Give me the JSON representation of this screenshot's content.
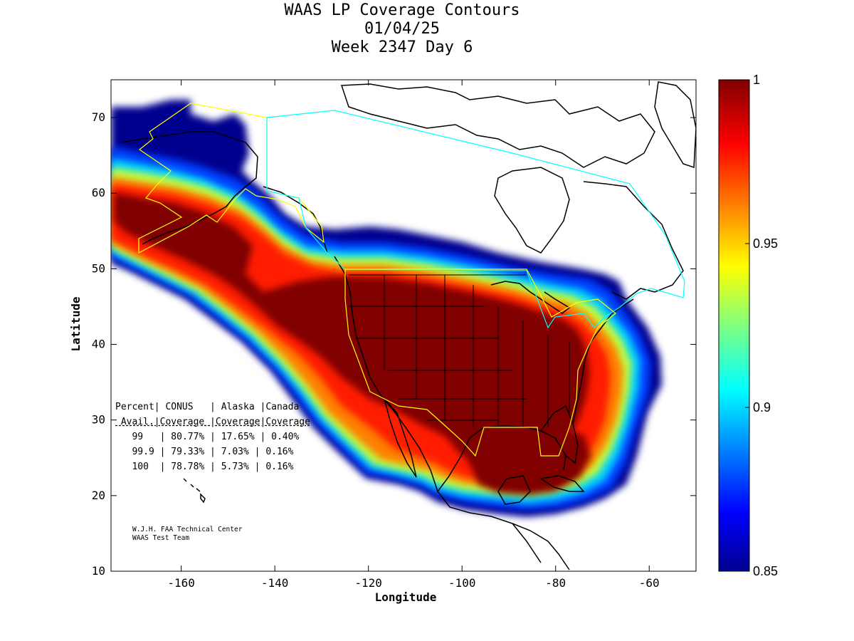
{
  "title": {
    "line1": "WAAS LP Coverage Contours",
    "line2": "01/04/25",
    "line3": "Week 2347 Day 6"
  },
  "axes": {
    "xlabel": "Longitude",
    "ylabel": "Latitude",
    "x_ticks": [
      "-160",
      "-140",
      "-120",
      "-100",
      "-80",
      "-60"
    ],
    "y_ticks": [
      "10",
      "20",
      "30",
      "40",
      "50",
      "60",
      "70"
    ],
    "xlim": [
      -175,
      -50
    ],
    "ylim": [
      10,
      75
    ]
  },
  "colorbar": {
    "labels": [
      "1",
      "0.95",
      "0.9",
      "0.85"
    ],
    "range": [
      0.85,
      1.0
    ],
    "colormap": "jet"
  },
  "stats": {
    "header1": "Percent| CONUS   | Alaska |Canada",
    "header2": " Avail.|Coverage |Coverage|Coverage",
    "rows": [
      "   99   | 80.77% | 17.65% | 0.40%",
      "   99.9 | 79.33% | 7.03% | 0.16%",
      "   100  | 78.78% | 5.73% | 0.16%"
    ]
  },
  "credits": {
    "line1": "W.J.H. FAA Technical Center",
    "line2": "WAAS Test Team"
  },
  "colors": {
    "coverage_full": "#800000",
    "coverage_low": "#00008f",
    "alaska_boundary": "#ffff00",
    "canada_boundary": "#00ffff",
    "conus_boundary": "#ffff00"
  },
  "chart_data": {
    "type": "heatmap",
    "title": "WAAS LP Coverage Contours",
    "xlabel": "Longitude",
    "ylabel": "Latitude",
    "xlim": [
      -175,
      -50
    ],
    "ylim": [
      10,
      75
    ],
    "color_range": [
      0.85,
      1.0
    ],
    "levels": [
      0.85,
      0.9,
      0.95,
      1.0
    ],
    "coverage_table": [
      {
        "percent_avail": "99",
        "conus": "80.77%",
        "alaska": "17.65%",
        "canada": "0.40%"
      },
      {
        "percent_avail": "99.9",
        "conus": "79.33%",
        "alaska": "7.03%",
        "canada": "0.16%"
      },
      {
        "percent_avail": "100",
        "conus": "78.78%",
        "alaska": "5.73%",
        "canada": "0.16%"
      }
    ]
  }
}
